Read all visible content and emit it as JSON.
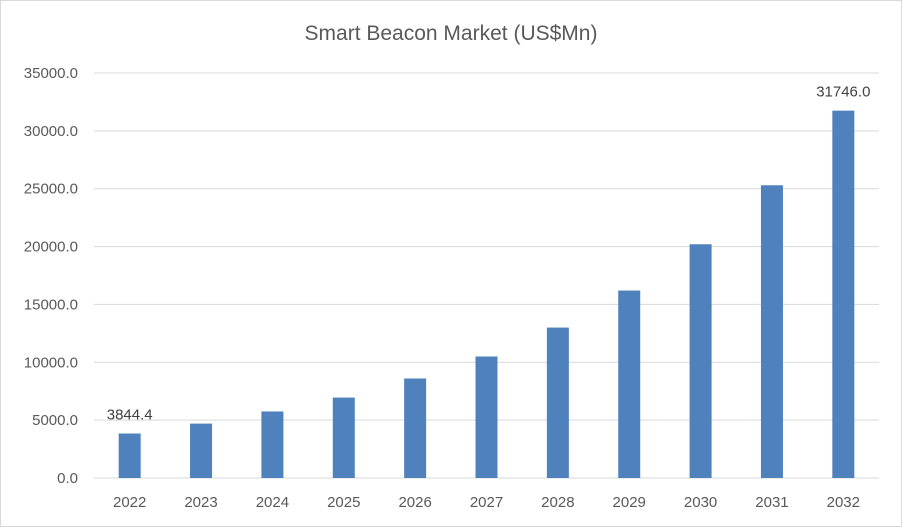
{
  "chart_data": {
    "type": "bar",
    "title": "Smart Beacon Market (US$Mn)",
    "xlabel": "",
    "ylabel": "",
    "categories": [
      "2022",
      "2023",
      "2024",
      "2025",
      "2026",
      "2027",
      "2028",
      "2029",
      "2030",
      "2031",
      "2032"
    ],
    "values": [
      3844.4,
      4700,
      5750,
      6950,
      8600,
      10500,
      13000,
      16200,
      20200,
      25300,
      31746.0
    ],
    "data_labels": [
      {
        "category": "2022",
        "text": "3844.4"
      },
      {
        "category": "2032",
        "text": "31746.0"
      }
    ],
    "ylim": [
      0,
      35000
    ],
    "yticks": [
      "0.0",
      "5000.0",
      "10000.0",
      "15000.0",
      "20000.0",
      "25000.0",
      "30000.0",
      "35000.0"
    ],
    "bar_color": "#4f81bd",
    "grid": true,
    "legend": "none"
  }
}
